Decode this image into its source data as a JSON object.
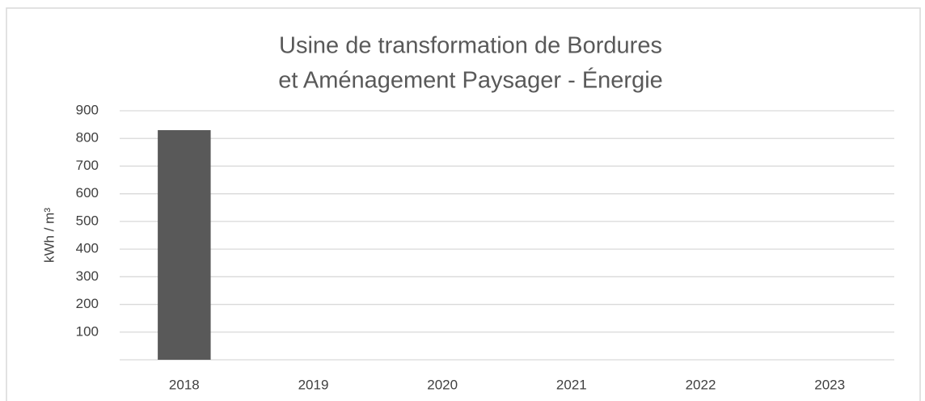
{
  "chart_data": {
    "type": "bar",
    "title": [
      "Usine de transformation de Bordures",
      "et Aménagement Paysager - Énergie"
    ],
    "y_label": "kWh / m³",
    "categories": [
      "2018",
      "2019",
      "2020",
      "2021",
      "2022",
      "2023"
    ],
    "values": [
      830,
      null,
      null,
      null,
      null,
      null
    ],
    "color": "#595959",
    "ylim": [
      0,
      900
    ],
    "yticks": [
      100,
      200,
      300,
      400,
      500,
      600,
      700,
      800,
      900
    ],
    "grid": true
  }
}
